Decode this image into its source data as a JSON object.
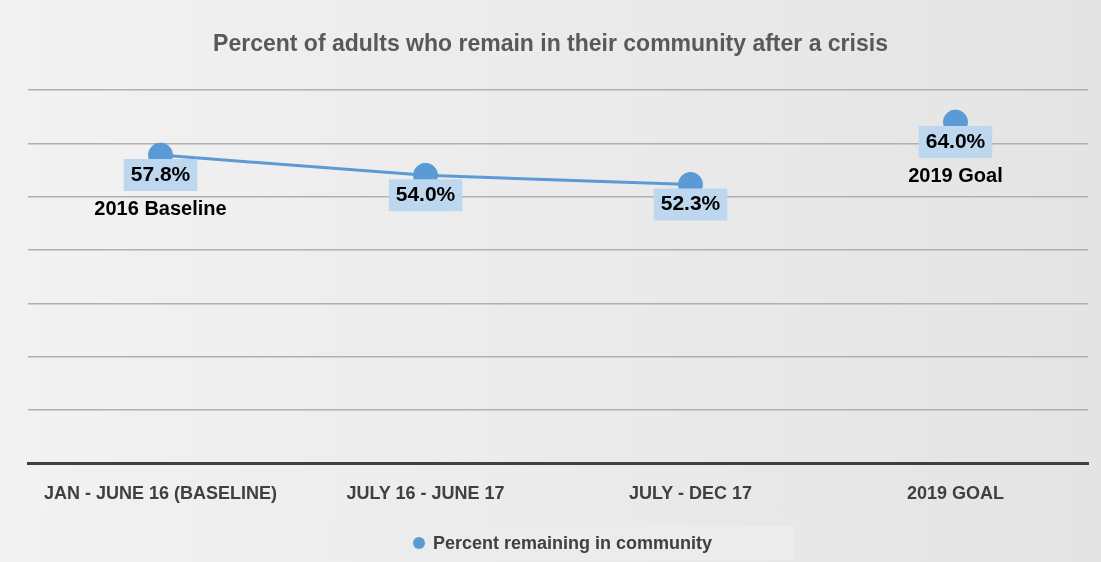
{
  "chart_data": {
    "type": "line",
    "title": "Percent of adults who remain in their community after a crisis",
    "categories": [
      "JAN - JUNE 16 (BASELINE)",
      "JULY 16 - JUNE 17",
      "JULY - DEC 17",
      "2019 GOAL"
    ],
    "series": [
      {
        "name": "Percent remaining in community",
        "color": "#5b9bd5",
        "values": [
          57.8,
          54.0,
          52.3,
          null
        ],
        "value_labels": [
          "57.8%",
          "54.0%",
          "52.3%",
          null
        ]
      },
      {
        "type": "scatter",
        "color": "#5b9bd5",
        "values": [
          null,
          null,
          null,
          64.0
        ],
        "value_labels": [
          null,
          null,
          null,
          "64.0%"
        ]
      }
    ],
    "ylim": [
      0,
      70
    ],
    "yticks": [
      {
        "value": 0,
        "label": null
      },
      {
        "value": 10,
        "label": null
      },
      {
        "value": 20,
        "label": null
      },
      {
        "value": 30,
        "label": null
      },
      {
        "value": 40,
        "label": null
      },
      {
        "value": 50,
        "label": null
      },
      {
        "value": 60,
        "label": null
      },
      {
        "value": 70,
        "label": null
      }
    ],
    "tick_labels": "x",
    "grid": "y",
    "legend": "bottom",
    "marker": "circle",
    "line_style": "solid",
    "annotations": [
      {
        "text": "2016 Baseline",
        "x": "JAN - JUNE 16 (BASELINE)",
        "y": 57.8
      },
      {
        "text": "2019 Goal",
        "x": "2019 GOAL",
        "y": 64.0
      }
    ]
  }
}
